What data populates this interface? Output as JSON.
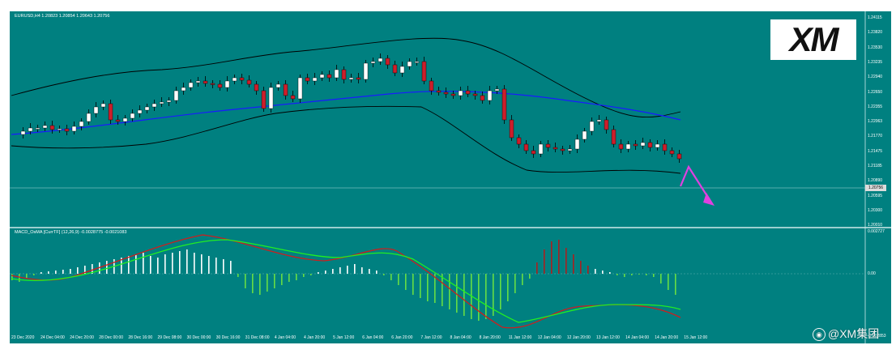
{
  "chart": {
    "symbol_label": "EURUSD,H4  1.20823 1.20854 1.20643 1.20756",
    "macd_label": "MACD_OsMA [CurrTF] (12,26,9) -0.0028775 -0.0021083",
    "current_price": "1.20756",
    "price_ticks": [
      "1.24115",
      "1.23820",
      "1.23530",
      "1.23235",
      "1.22940",
      "1.22650",
      "1.22355",
      "1.22063",
      "1.21770",
      "1.21475",
      "1.21185",
      "1.20890",
      "1.20595",
      "1.20300",
      "1.20010"
    ],
    "macd_ticks": [
      "0.002727",
      "0.00",
      "-0.002853"
    ],
    "time_ticks": [
      "23 Dec 2020",
      "24 Dec 04:00",
      "24 Dec 20:00",
      "28 Dec 00:00",
      "28 Dec 16:00",
      "29 Dec 08:00",
      "30 Dec 00:00",
      "30 Dec 16:00",
      "31 Dec 08:00",
      "4 Jan 04:00",
      "4 Jan 20:00",
      "5 Jan 12:00",
      "6 Jan 04:00",
      "6 Jan 20:00",
      "7 Jan 12:00",
      "8 Jan 04:00",
      "8 Jan 20:00",
      "11 Jan 12:00",
      "12 Jan 04:00",
      "12 Jan 20:00",
      "13 Jan 12:00",
      "14 Jan 04:00",
      "14 Jan 20:00",
      "15 Jan 12:00"
    ]
  },
  "colors": {
    "background": "#008080",
    "bull": "#ffffff",
    "bear": "#cc1f2b",
    "bands": "#000000",
    "ma": "#1a1aff",
    "arrow": "#e040e0",
    "macd_line": "#cc1f1f",
    "signal_line": "#22ee22",
    "hist_pos": "#ffffff",
    "hist_neg": "#66dd44",
    "hist_dark": "#aa2020"
  },
  "logo": {
    "text": "XM"
  },
  "watermark": {
    "text": "@XM集团",
    "icon": "weibo-icon"
  }
}
